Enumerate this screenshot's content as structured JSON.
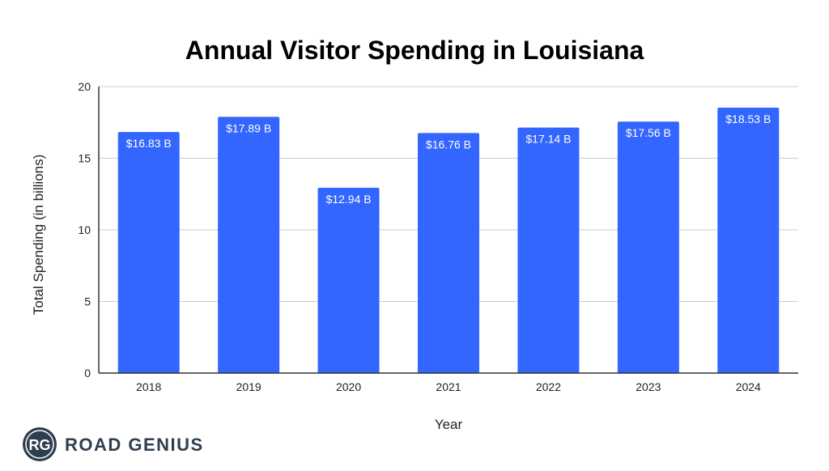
{
  "chart_data": {
    "type": "bar",
    "title": "Annual Visitor Spending in Louisiana",
    "xlabel": "Year",
    "ylabel": "Total Spending (in billions)",
    "categories": [
      "2018",
      "2019",
      "2020",
      "2021",
      "2022",
      "2023",
      "2024"
    ],
    "values": [
      16.83,
      17.89,
      12.94,
      16.76,
      17.14,
      17.56,
      18.53
    ],
    "data_labels": [
      "$16.83 B",
      "$17.89 B",
      "$12.94 B",
      "$16.76 B",
      "$17.14 B",
      "$17.56 B",
      "$18.53 B"
    ],
    "ylim": [
      0,
      20
    ],
    "yticks": [
      0,
      5,
      10,
      15,
      20
    ],
    "grid": true,
    "bar_color": "#3366ff"
  },
  "brand": {
    "logo_text": "RG",
    "name": "ROAD GENIUS",
    "logo_color": "#2f3e4f"
  }
}
